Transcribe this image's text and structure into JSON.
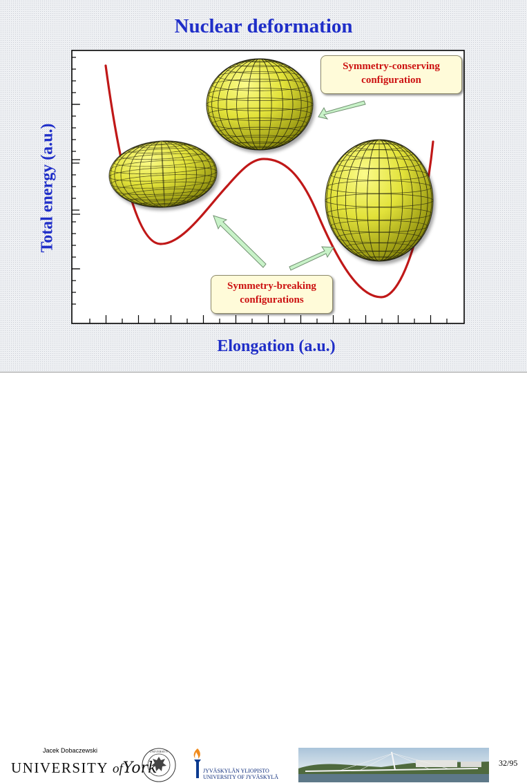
{
  "slide": {
    "title": "Nuclear deformation",
    "y_axis_label": "Total energy (a.u.)",
    "x_axis_label": "Elongation (a.u.)",
    "callout_conserving": {
      "line1": "Symmetry-conserving",
      "line2": "configuration"
    },
    "callout_breaking": {
      "line1": "Symmetry-breaking",
      "line2": "configurations"
    },
    "colors": {
      "title": "#1f2ec8",
      "curve": "#c01818",
      "callout_text": "#cc1111",
      "callout_bg": "#fffbd9",
      "sphere": "#e6e63a",
      "arrow": "#c8f2c8"
    }
  },
  "footer": {
    "author": "Jacek Dobaczewski",
    "york_prefix": "UNIVERSITY",
    "york_of": "of",
    "york_name": "York",
    "jyu_line1": "JYVÄSKYLÄN YLIOPISTO",
    "jyu_line2": "UNIVERSITY OF JYVÄSKYLÄ",
    "page": "32/95",
    "icons": [
      "university-of-warsaw-seal",
      "jyvaskyla-torch-logo",
      "bridge-photo"
    ]
  }
}
